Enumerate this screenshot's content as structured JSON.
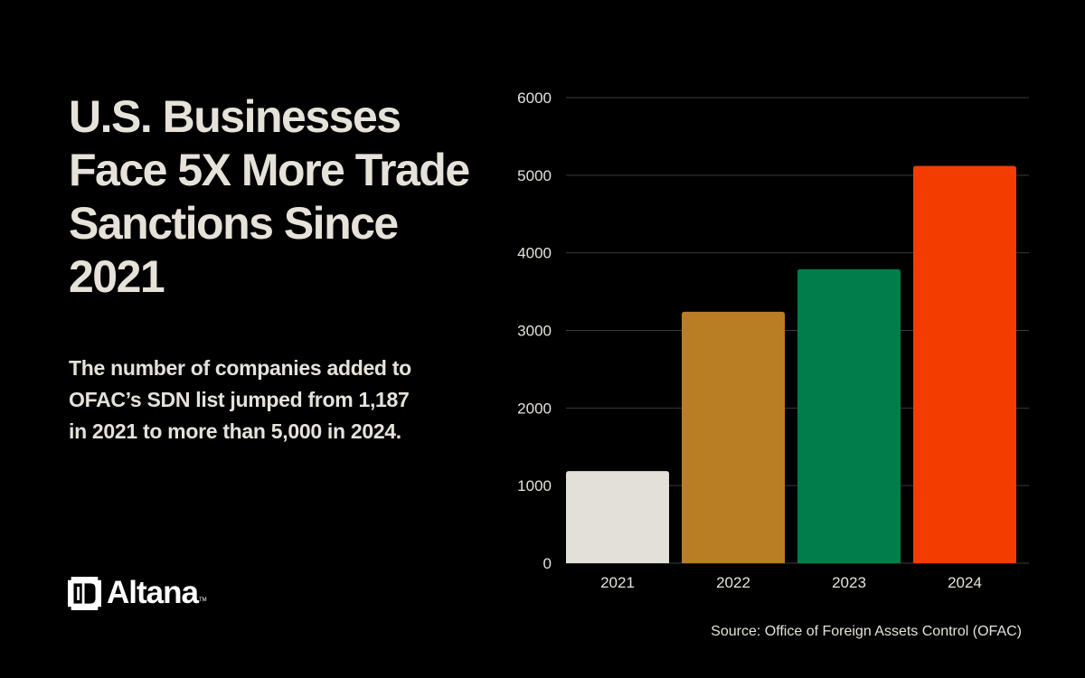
{
  "headline": "U.S. Businesses Face 5X More Trade Sanctions Since 2021",
  "subtext": "The number of companies added to OFAC’s SDN list jumped from 1,187 in 2021 to more than 5,000 in 2024.",
  "brand": {
    "name": "Altana",
    "tm": "TM"
  },
  "source": "Source: Office of Foreign Assets Control (OFAC)",
  "chart_data": {
    "type": "bar",
    "title": "",
    "xlabel": "",
    "ylabel": "",
    "categories": [
      "2021",
      "2022",
      "2023",
      "2024"
    ],
    "values": [
      1187,
      3240,
      3790,
      5120
    ],
    "colors": [
      "#e3e0d9",
      "#b97d23",
      "#007d4b",
      "#f23c00"
    ],
    "ylim": [
      0,
      6000
    ],
    "yticks": [
      0,
      1000,
      2000,
      3000,
      4000,
      5000,
      6000
    ],
    "grid": true,
    "legend": "none"
  }
}
